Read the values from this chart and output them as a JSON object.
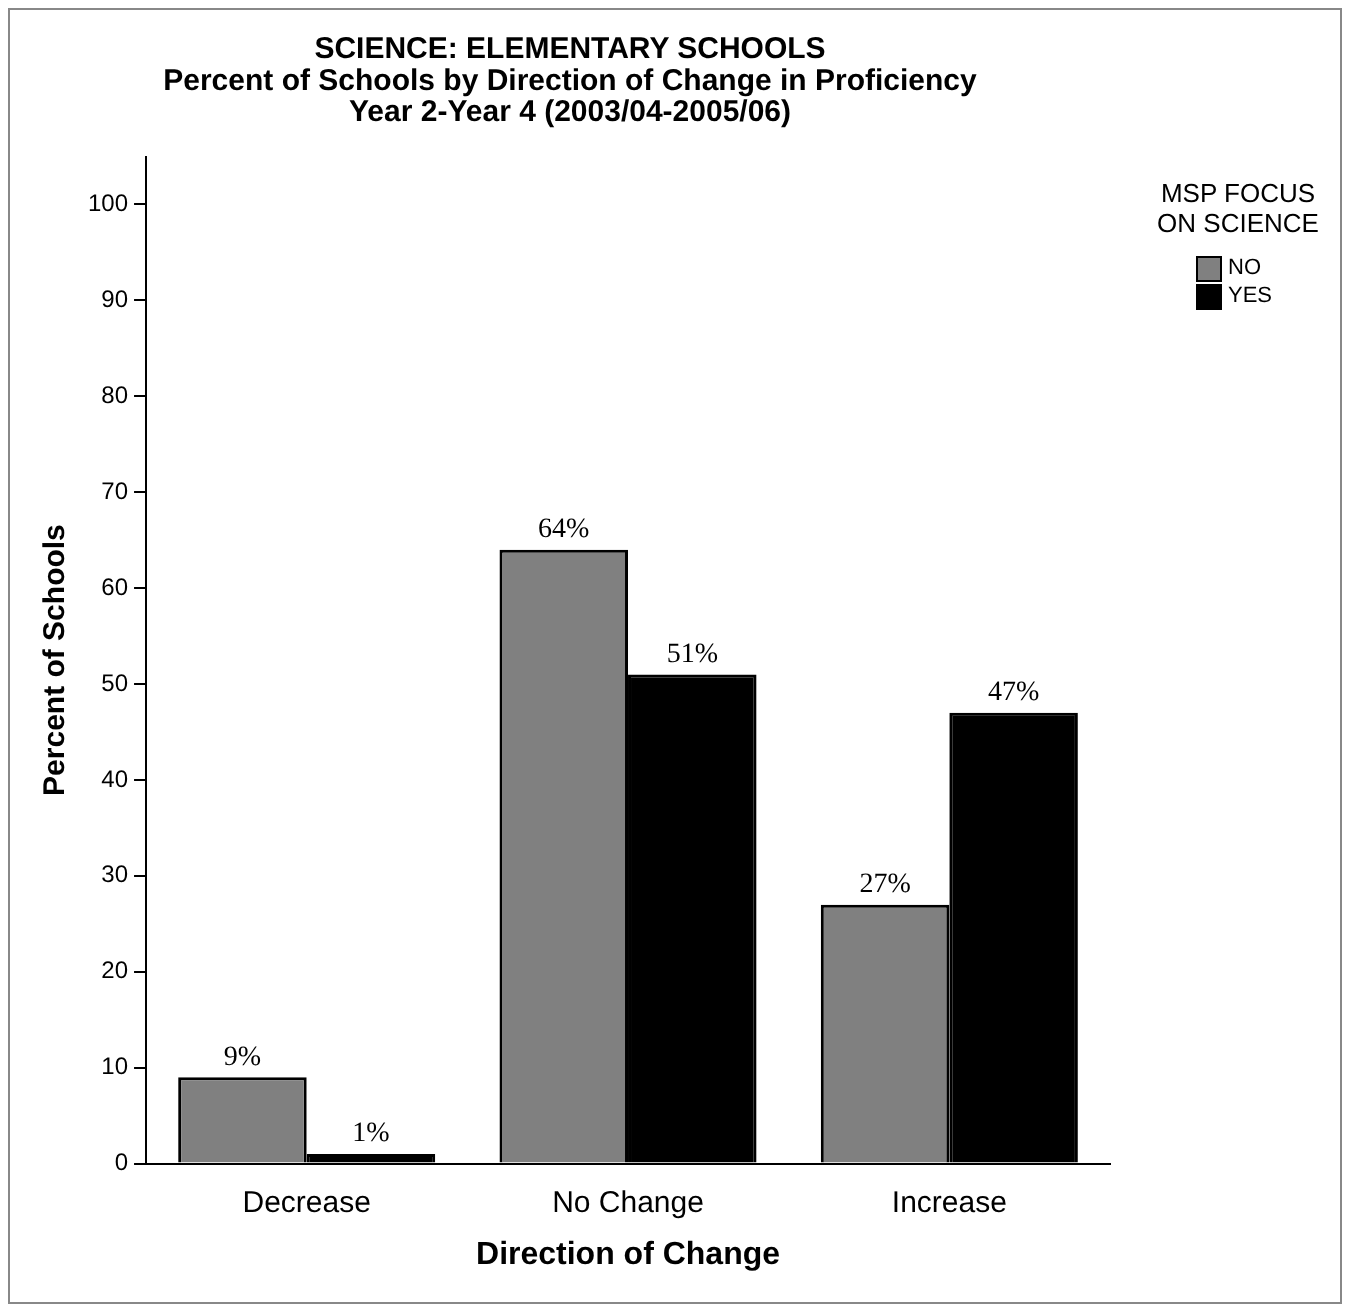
{
  "chart_data": {
    "type": "bar",
    "title": "SCIENCE: ELEMENTARY SCHOOLS\nPercent of Schools by Direction of Change in Proficiency\nYear 2-Year 4 (2003/04-2005/06)",
    "xlabel": "Direction of Change",
    "ylabel": "Percent of Schools",
    "legend_title": "MSP FOCUS ON SCIENCE",
    "categories": [
      "Decrease",
      "No Change",
      "Increase"
    ],
    "series": [
      {
        "name": "NO",
        "color": "#808080",
        "values": [
          9,
          64,
          27
        ],
        "value_labels": [
          "9%",
          "64%",
          "27%"
        ]
      },
      {
        "name": "YES",
        "color": "#000000",
        "values": [
          1,
          51,
          47
        ],
        "value_labels": [
          "1%",
          "51%",
          "47%"
        ]
      }
    ],
    "ylim": [
      0,
      105
    ],
    "yticks": [
      0,
      10,
      20,
      30,
      40,
      50,
      60,
      70,
      80,
      90,
      100
    ],
    "grid": false,
    "legend": "top right"
  }
}
